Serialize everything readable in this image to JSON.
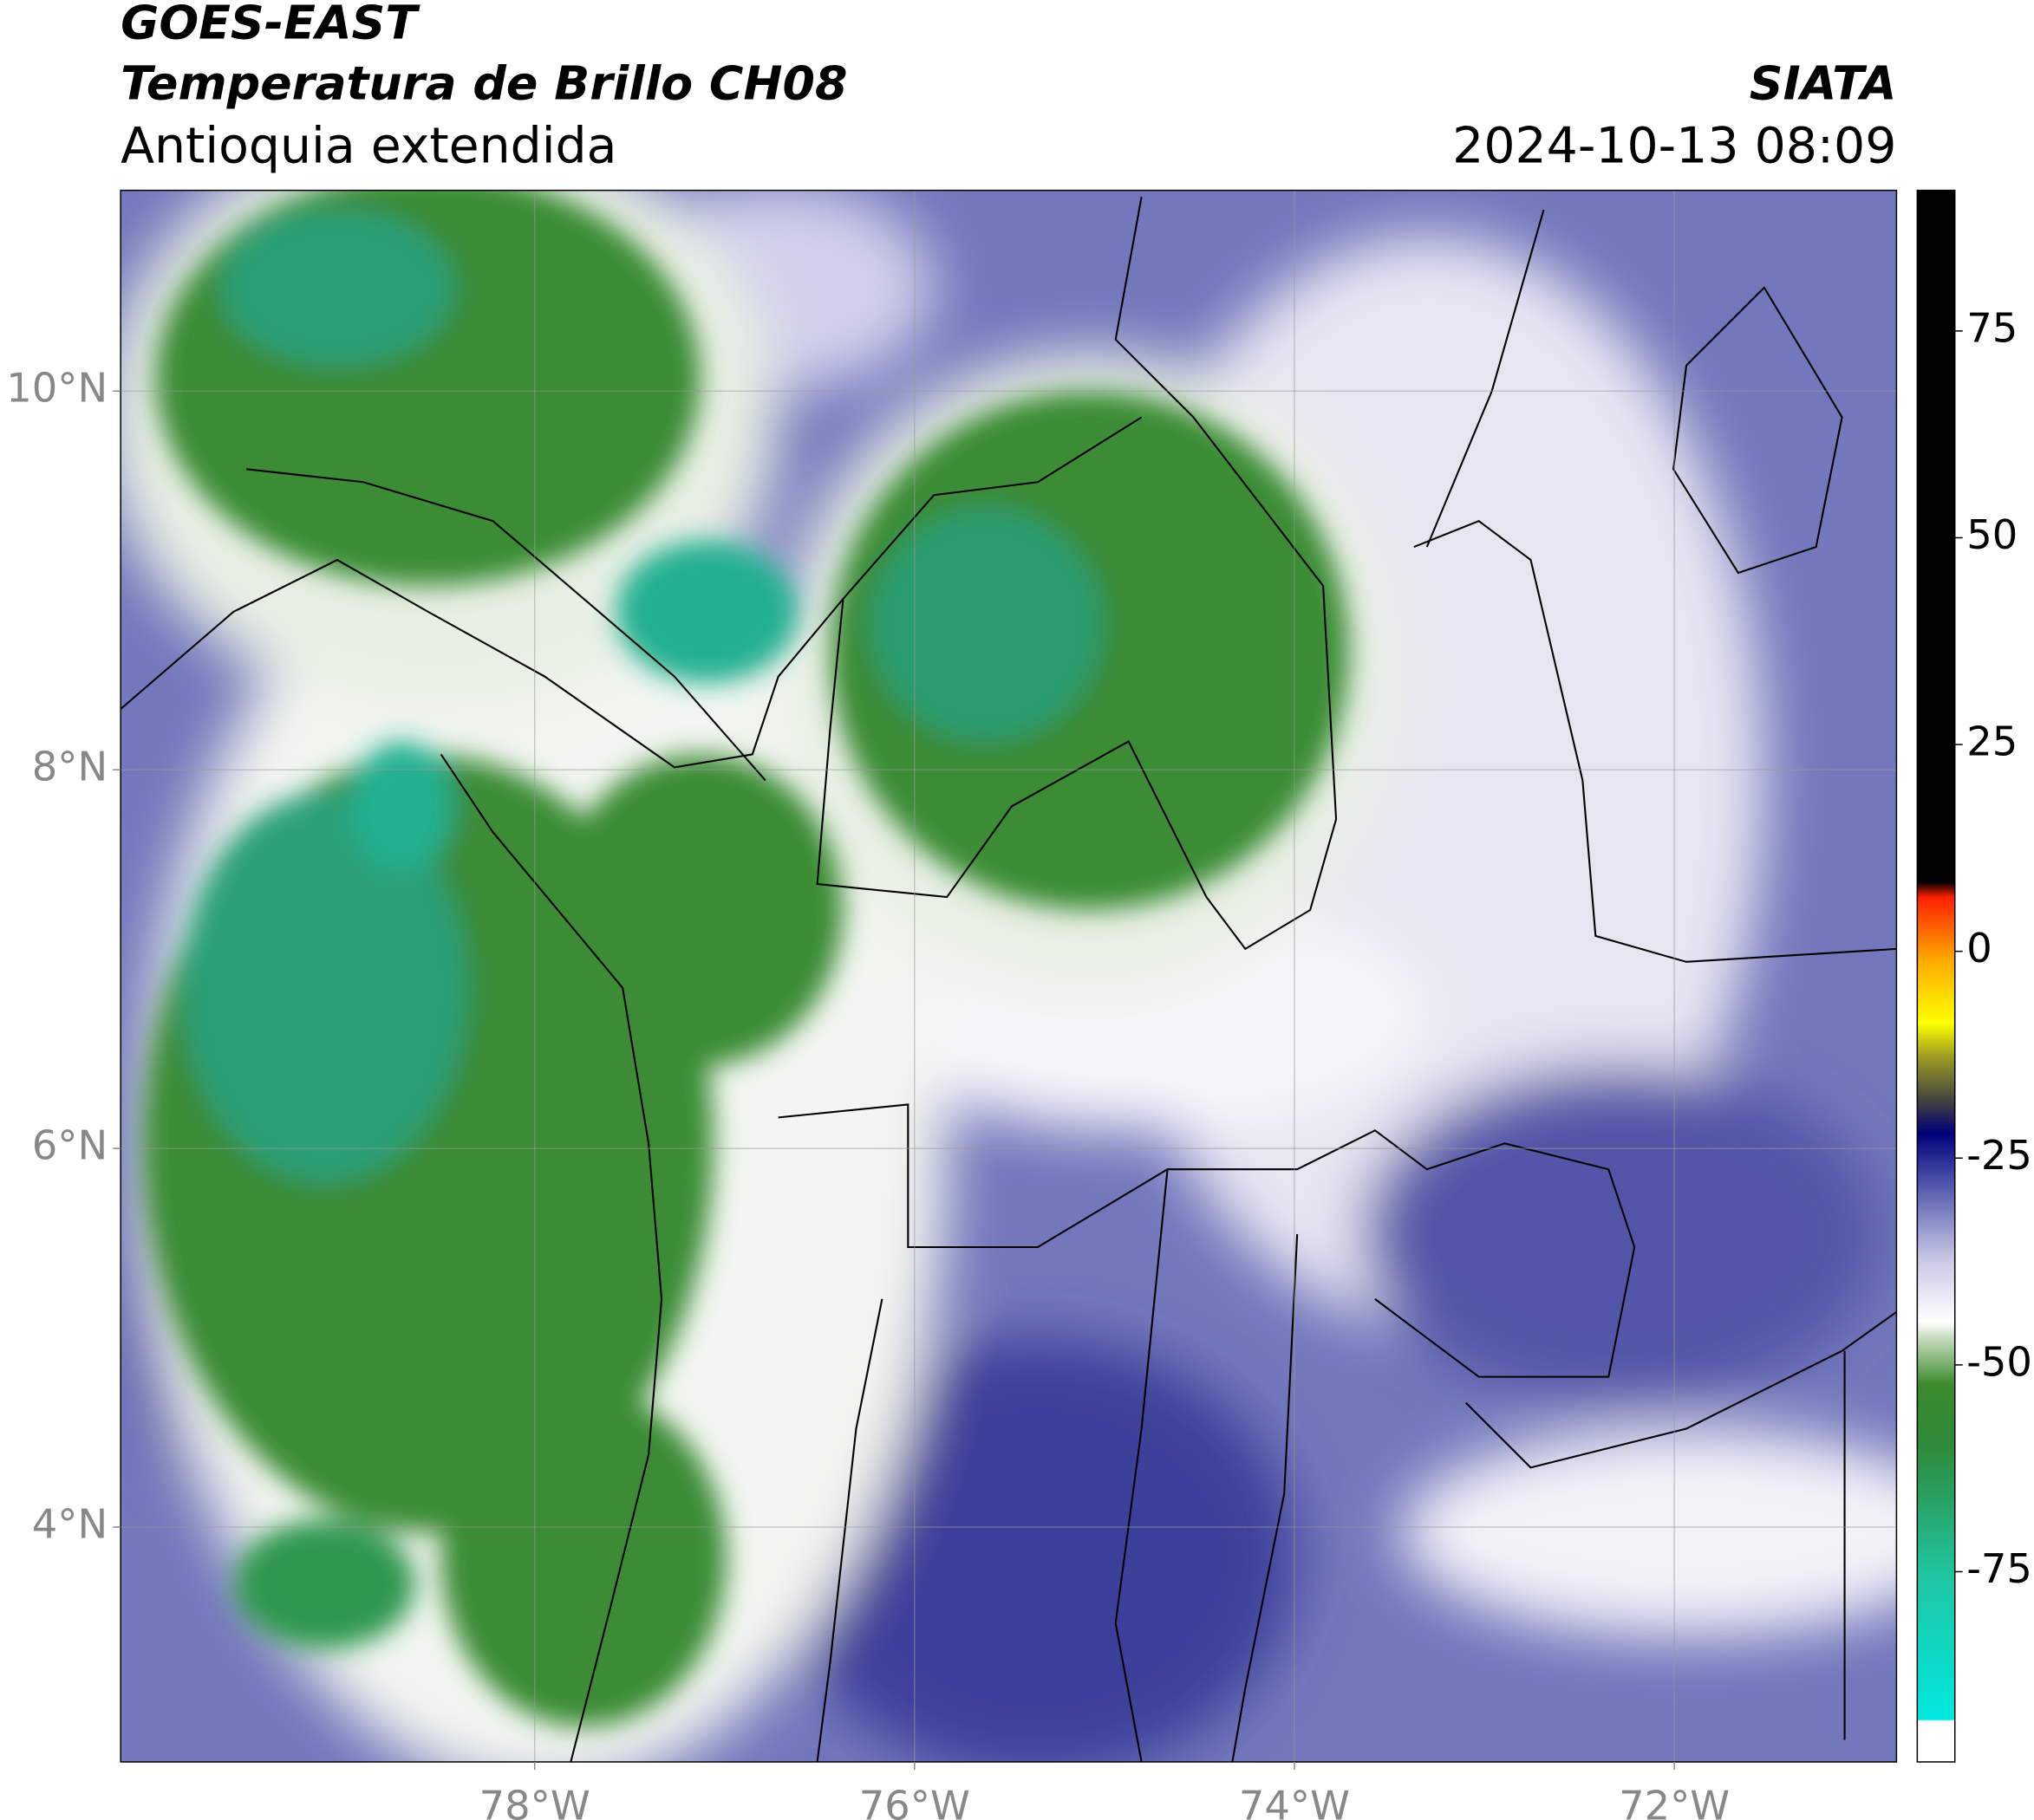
{
  "header": {
    "satellite": "GOES-EAST",
    "product": "Temperatura de Brillo CH08",
    "region": "Antioquia extendida",
    "source": "SIATA",
    "datetime": "2024-10-13 08:09"
  },
  "map": {
    "xlim": [
      -80.18,
      -70.83
    ],
    "ylim": [
      2.76,
      11.06
    ],
    "xticks": [
      {
        "value": -78,
        "label": "78°W"
      },
      {
        "value": -76,
        "label": "76°W"
      },
      {
        "value": -74,
        "label": "74°W"
      },
      {
        "value": -72,
        "label": "72°W"
      }
    ],
    "yticks": [
      {
        "value": 10,
        "label": "10°N"
      },
      {
        "value": 8,
        "label": "8°N"
      },
      {
        "value": 6,
        "label": "6°N"
      },
      {
        "value": 4,
        "label": "4°N"
      }
    ]
  },
  "colorbar": {
    "lim": [
      -98,
      92
    ],
    "ticks": [
      75,
      50,
      25,
      0,
      -25,
      -50,
      -75
    ]
  }
}
